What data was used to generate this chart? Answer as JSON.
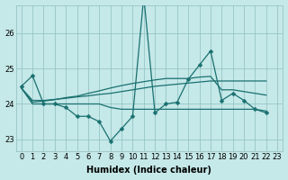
{
  "xlabel": "Humidex (Indice chaleur)",
  "background_color": "#c5e8e8",
  "grid_color": "#8fbfbf",
  "line_color": "#1a7070",
  "xlim": [
    -0.5,
    23.5
  ],
  "ylim": [
    22.65,
    26.8
  ],
  "yticks": [
    23,
    24,
    25,
    26
  ],
  "xticks": [
    0,
    1,
    2,
    3,
    4,
    5,
    6,
    7,
    8,
    9,
    10,
    11,
    12,
    13,
    14,
    15,
    16,
    17,
    18,
    19,
    20,
    21,
    22,
    23
  ],
  "xtick_labels": [
    "0",
    "1",
    "2",
    "3",
    "4",
    "5",
    "6",
    "7",
    "8",
    "9",
    "10",
    "11",
    "12",
    "13",
    "14",
    "15",
    "16",
    "17",
    "18",
    "19",
    "20",
    "21",
    "22",
    "23"
  ],
  "series": [
    {
      "y": [
        24.5,
        24.8,
        24.0,
        24.0,
        23.9,
        23.65,
        23.65,
        23.5,
        22.95,
        23.3,
        23.65,
        27.05,
        23.75,
        24.0,
        24.05,
        24.7,
        25.1,
        25.5,
        24.1,
        24.3,
        24.1,
        23.85,
        23.75
      ],
      "marker": true,
      "markersize": 2.5
    },
    {
      "y": [
        24.45,
        24.1,
        24.1,
        24.13,
        24.16,
        24.2,
        24.23,
        24.27,
        24.3,
        24.35,
        24.4,
        24.45,
        24.5,
        24.53,
        24.56,
        24.59,
        24.62,
        24.65,
        24.65,
        24.65,
        24.65,
        24.65,
        24.65
      ],
      "marker": false,
      "markersize": 0
    },
    {
      "y": [
        24.45,
        24.05,
        24.08,
        24.12,
        24.18,
        24.22,
        24.3,
        24.37,
        24.45,
        24.52,
        24.58,
        24.63,
        24.68,
        24.72,
        24.72,
        24.72,
        24.76,
        24.78,
        24.4,
        24.4,
        24.35,
        24.3,
        24.25
      ],
      "marker": false,
      "markersize": 0
    },
    {
      "y": [
        24.45,
        24.0,
        24.0,
        24.0,
        24.0,
        24.0,
        24.0,
        24.0,
        23.9,
        23.85,
        23.85,
        23.85,
        23.85,
        23.85,
        23.85,
        23.85,
        23.85,
        23.85,
        23.85,
        23.85,
        23.85,
        23.85,
        23.8
      ],
      "marker": false,
      "markersize": 0
    }
  ],
  "linewidth": 0.9,
  "tick_fontsize": 6,
  "xlabel_fontsize": 7,
  "xlabel_fontweight": "bold"
}
